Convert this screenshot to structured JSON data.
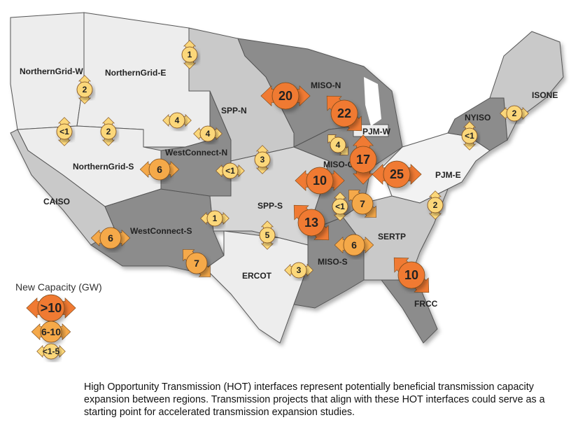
{
  "regions": {
    "northerngrid_w": "NorthernGrid-W",
    "northerngrid_e": "NorthernGrid-E",
    "northerngrid_s": "NorthernGrid-S",
    "caiso": "CAISO",
    "westconnect_n": "WestConnect-N",
    "westconnect_s": "WestConnect-S",
    "spp_n": "SPP-N",
    "spp_s": "SPP-S",
    "ercot": "ERCOT",
    "miso_n": "MISO-N",
    "miso_c": "MISO-C",
    "miso_s": "MISO-S",
    "pjm_w": "PJM-W",
    "pjm_e": "PJM-E",
    "sertp": "SERTP",
    "frcc": "FRCC",
    "nyiso": "NYISO",
    "isone": "ISONE"
  },
  "interfaces": [
    {
      "label": "1",
      "category": "small"
    },
    {
      "label": "2",
      "category": "small"
    },
    {
      "label": "<1",
      "category": "small"
    },
    {
      "label": "2",
      "category": "small"
    },
    {
      "label": "4",
      "category": "small"
    },
    {
      "label": "4",
      "category": "small"
    },
    {
      "label": "6",
      "category": "mid"
    },
    {
      "label": "<1",
      "category": "small"
    },
    {
      "label": "3",
      "category": "small"
    },
    {
      "label": "20",
      "category": "large"
    },
    {
      "label": "22",
      "category": "large"
    },
    {
      "label": "4",
      "category": "small"
    },
    {
      "label": "17",
      "category": "large"
    },
    {
      "label": "25",
      "category": "large"
    },
    {
      "label": "10",
      "category": "large"
    },
    {
      "label": "<1",
      "category": "small"
    },
    {
      "label": "7",
      "category": "mid"
    },
    {
      "label": "13",
      "category": "large"
    },
    {
      "label": "1",
      "category": "small"
    },
    {
      "label": "5",
      "category": "small"
    },
    {
      "label": "6",
      "category": "mid"
    },
    {
      "label": "7",
      "category": "mid"
    },
    {
      "label": "3",
      "category": "small"
    },
    {
      "label": "10",
      "category": "large"
    },
    {
      "label": "6",
      "category": "mid"
    },
    {
      "label": "2",
      "category": "small"
    },
    {
      "label": "<1",
      "category": "small"
    },
    {
      "label": "2",
      "category": "small"
    }
  ],
  "legend": {
    "title": "New Capacity (GW)",
    "items": [
      {
        "label": ">10",
        "category": "large"
      },
      {
        "label": "6-10",
        "category": "mid"
      },
      {
        "label": "<1-5",
        "category": "small"
      }
    ]
  },
  "colors": {
    "large": "#f07a33",
    "mid": "#f5a94a",
    "small": "#fbd77a",
    "light": "#ececec",
    "mid_region": "#c9c9c9",
    "dark": "#8c8c8c"
  },
  "caption": "High Opportunity Transmission (HOT) interfaces represent potentially beneficial transmission capacity expansion between regions. Transmission projects that align with these HOT interfaces could serve as a starting point for accelerated transmission expansion studies."
}
